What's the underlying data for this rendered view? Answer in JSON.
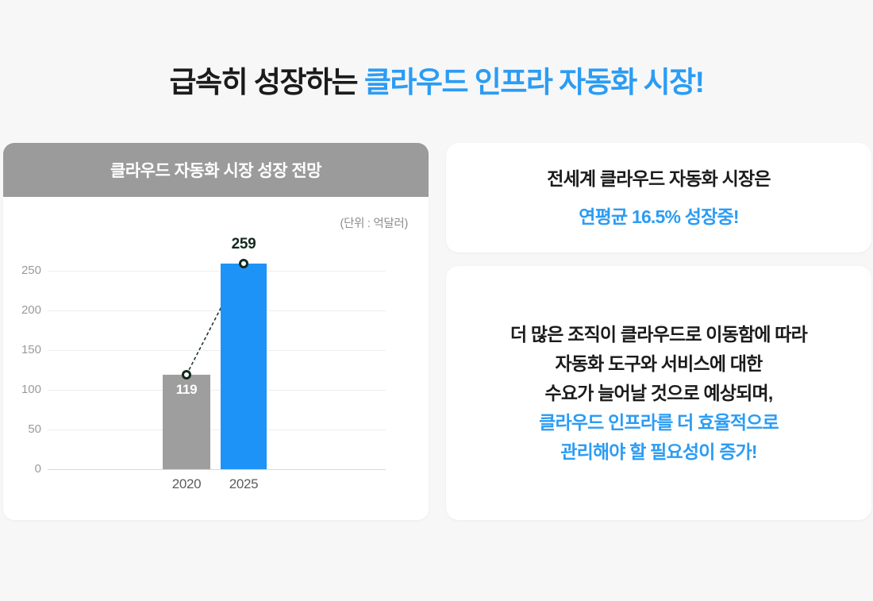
{
  "page": {
    "title": {
      "black": "급속히 성장하는 ",
      "blue": "클라우드 인프라 자동화 시장!"
    }
  },
  "colors": {
    "background": "#f7f7f8",
    "card": "#ffffff",
    "header_gray": "#9b9b9b",
    "bar_gray": "#9e9e9e",
    "bar_blue": "#1e93f7",
    "accent_blue_text": "#2b9cf4",
    "dark_text": "#1b1b1b",
    "marker_dark": "#132a1f",
    "grid": "#ededed",
    "axis": "#d8d8d8",
    "ytick_gray": "#9a9a9a",
    "xtick_gray": "#5c5c5c",
    "unit_gray": "#8c8c8c"
  },
  "left_card": {
    "header": "클라우드 자동화 시장 성장 전망",
    "unit_label": "(단위 : 억달러)"
  },
  "chart_data": {
    "type": "bar",
    "title": "클라우드 자동화 시장 성장 전망",
    "unit": "(단위 : 억달러)",
    "categories": [
      "2020",
      "2025"
    ],
    "values": [
      119,
      259
    ],
    "bar_colors": [
      "#9e9e9e",
      "#1e93f7"
    ],
    "value_label_positions": [
      "inside",
      "above"
    ],
    "value_label_colors": [
      "#ffffff",
      "#132a1f"
    ],
    "xlabel": "",
    "ylabel": "",
    "ylim": [
      0,
      250
    ],
    "yticks": [
      0,
      50,
      100,
      150,
      200,
      250
    ],
    "grid": true,
    "legend": "none",
    "connector": {
      "style": "dashed",
      "color": "#22352b",
      "markers": true
    }
  },
  "right_top_card": {
    "line1": "전세계 클라우드 자동화 시장은",
    "line2": "연평균 16.5% 성장중!"
  },
  "right_bottom_card": {
    "lines": [
      {
        "text": "더 많은 조직이 클라우드로 이동함에 따라",
        "accent": false
      },
      {
        "text": "자동화 도구와 서비스에 대한",
        "accent": false
      },
      {
        "text": "수요가 늘어날 것으로 예상되며,",
        "accent": false
      },
      {
        "text": "클라우드 인프라를 더 효율적으로",
        "accent": true
      },
      {
        "text": "관리해야 할 필요성이 증가!",
        "accent": true
      }
    ]
  }
}
